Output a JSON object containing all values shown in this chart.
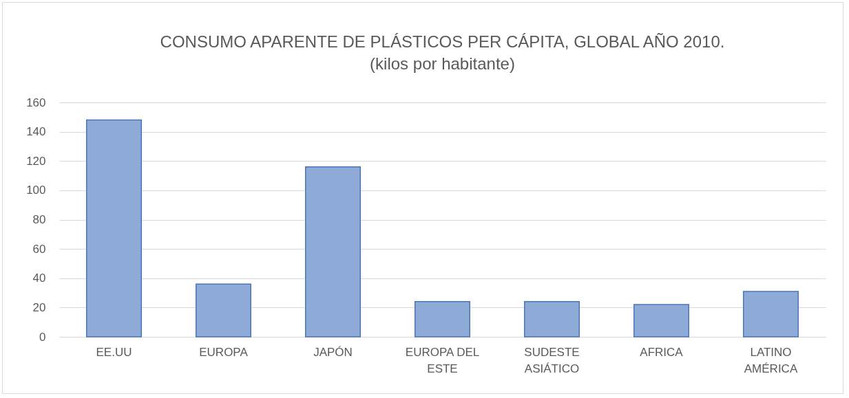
{
  "chart_data": {
    "type": "bar",
    "title": "CONSUMO APARENTE DE PLÁSTICOS PER CÁPITA, GLOBAL AÑO 2010.",
    "subtitle": "(kilos por habitante)",
    "categories": [
      "EE.UU",
      "EUROPA",
      "JAPÓN",
      "EUROPA DEL ESTE",
      "SUDESTE ASIÁTICO",
      "AFRICA",
      "LATINO AMÉRICA"
    ],
    "values": [
      148,
      36,
      116,
      24,
      24,
      22,
      31
    ],
    "color": "#8eaad6",
    "ylim": [
      0,
      160
    ],
    "yticks": [
      0,
      20,
      40,
      60,
      80,
      100,
      120,
      140,
      160
    ],
    "grid": "y"
  }
}
